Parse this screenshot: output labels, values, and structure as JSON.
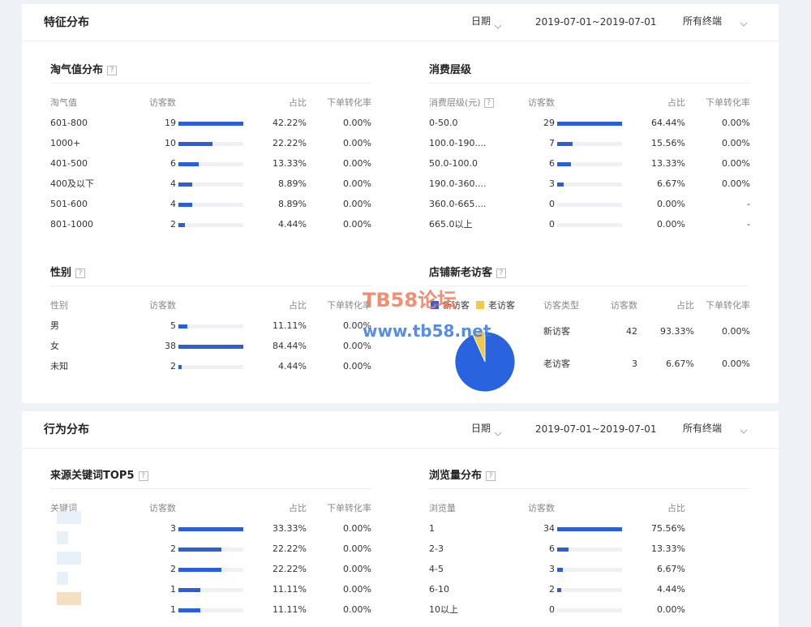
{
  "panels": [
    {
      "title": "特征分布",
      "date_label": "日期",
      "date_range": "2019-07-01~2019-07-01",
      "terminal": "所有终端",
      "sections": [
        {
          "title": "淘气值分布",
          "hint": "?",
          "columns": [
            "淘气值",
            "访客数",
            "占比",
            "下单转化率"
          ],
          "rows": [
            [
              "601-800",
              19,
              "42.22%",
              "0.00%"
            ],
            [
              "1000+",
              10,
              "22.22%",
              "0.00%"
            ],
            [
              "401-500",
              6,
              "13.33%",
              "0.00%"
            ],
            [
              "400及以下",
              4,
              "8.89%",
              "0.00%"
            ],
            [
              "501-600",
              4,
              "8.89%",
              "0.00%"
            ],
            [
              "801-1000",
              2,
              "4.44%",
              "0.00%"
            ]
          ]
        },
        {
          "title": "消费层级",
          "columns": [
            "消费层级(元)",
            "访客数",
            "占比",
            "下单转化率"
          ],
          "column_hint": "?",
          "rows": [
            [
              "0-50.0",
              29,
              "64.44%",
              "0.00%"
            ],
            [
              "100.0-190....",
              7,
              "15.56%",
              "0.00%"
            ],
            [
              "50.0-100.0",
              6,
              "13.33%",
              "0.00%"
            ],
            [
              "190.0-360....",
              3,
              "6.67%",
              "0.00%"
            ],
            [
              "360.0-665....",
              0,
              "0.00%",
              "-"
            ],
            [
              "665.0以上",
              0,
              "0.00%",
              "-"
            ]
          ]
        },
        {
          "title": "性别",
          "hint": "?",
          "columns": [
            "性别",
            "访客数",
            "占比",
            "下单转化率"
          ],
          "rows": [
            [
              "男",
              5,
              "11.11%",
              "0.00%"
            ],
            [
              "女",
              38,
              "84.44%",
              "0.00%"
            ],
            [
              "未知",
              2,
              "4.44%",
              "0.00%"
            ]
          ]
        },
        {
          "title": "店铺新老访客",
          "hint": "?",
          "type": "pie",
          "colors": [
            "#2a63de",
            "#f2c84b"
          ],
          "columns": [
            "访客类型",
            "访客数",
            "占比",
            "下单转化率"
          ],
          "rows": [
            [
              "新访客",
              42,
              "93.33%",
              "0.00%"
            ],
            [
              "老访客",
              3,
              "6.67%",
              "0.00%"
            ]
          ]
        }
      ]
    },
    {
      "title": "行为分布",
      "date_label": "日期",
      "date_range": "2019-07-01~2019-07-01",
      "terminal": "所有终端",
      "sections": [
        {
          "title": "来源关键词TOP5",
          "hint": "?",
          "columns": [
            "关键词",
            "访客数",
            "占比",
            "下单转化率"
          ],
          "rows": [
            [
              null,
              3,
              "33.33%",
              "0.00%"
            ],
            [
              null,
              2,
              "22.22%",
              "0.00%"
            ],
            [
              null,
              2,
              "22.22%",
              "0.00%"
            ],
            [
              null,
              1,
              "11.11%",
              "0.00%"
            ],
            [
              null,
              1,
              "11.11%",
              "0.00%"
            ]
          ]
        },
        {
          "title": "浏览量分布",
          "hint": "?",
          "columns": [
            "浏览量",
            "访客数",
            "占比"
          ],
          "rows": [
            [
              "1",
              34,
              "75.56%"
            ],
            [
              "2-3",
              6,
              "13.33%"
            ],
            [
              "4-5",
              3,
              "6.67%"
            ],
            [
              "6-10",
              2,
              "4.44%"
            ],
            [
              "10以上",
              0,
              "0.00%"
            ]
          ]
        }
      ]
    }
  ],
  "watermark": {
    "title": "TB58论坛",
    "url": "www.tb58.net"
  }
}
